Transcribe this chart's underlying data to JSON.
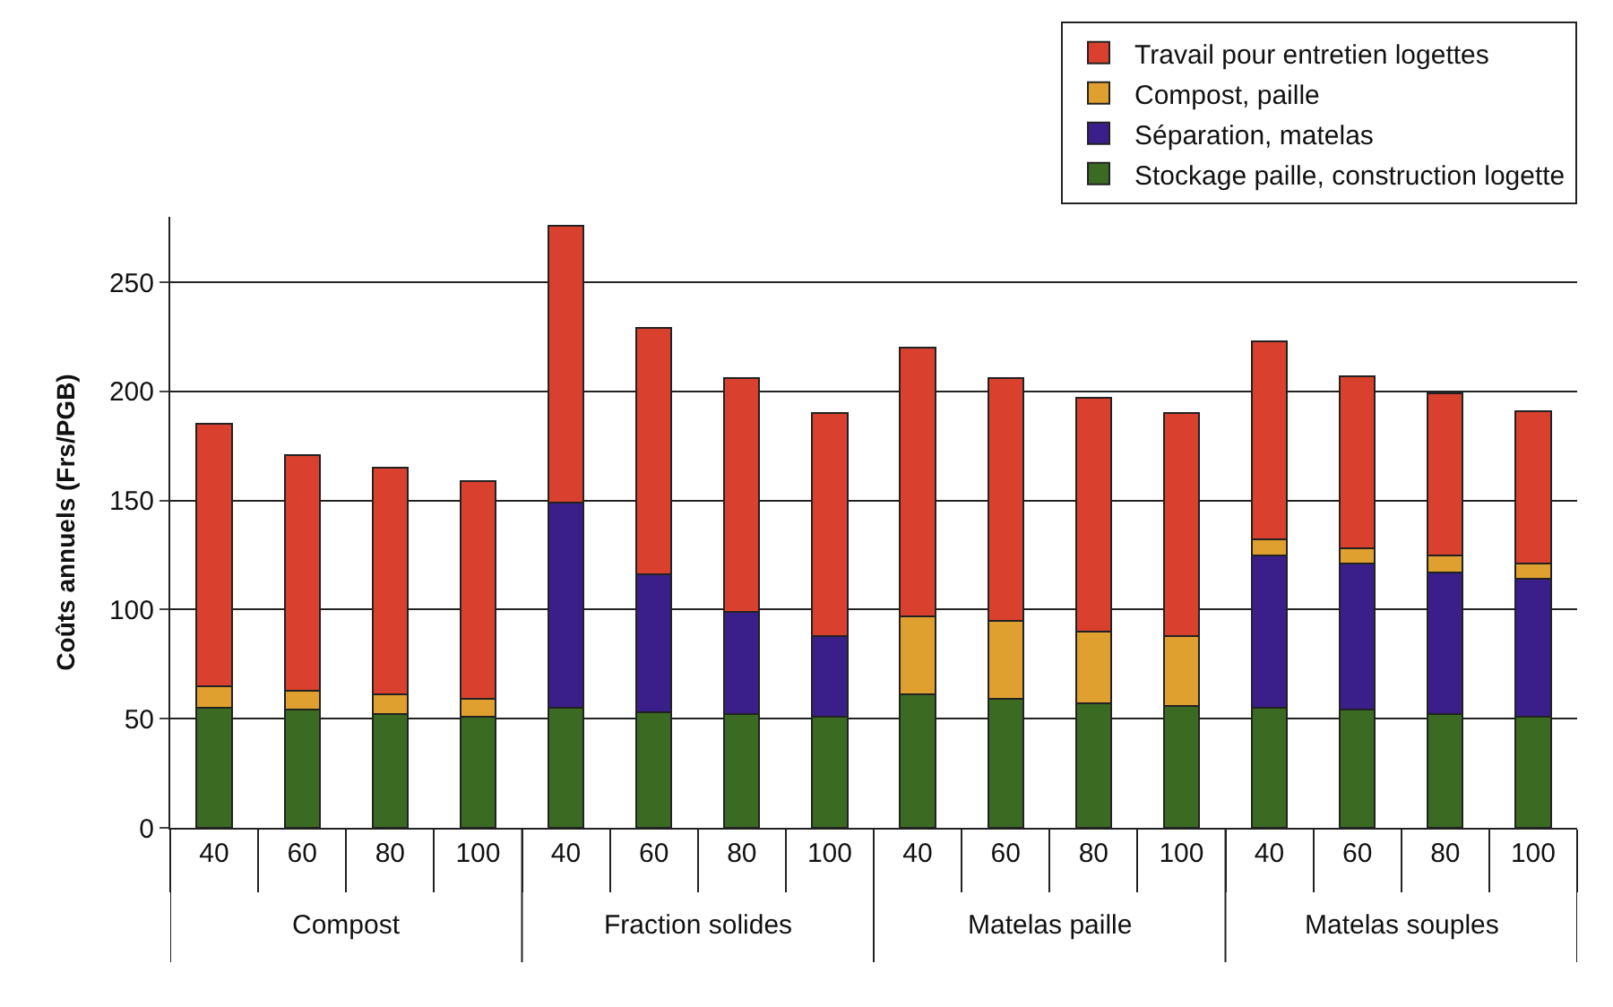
{
  "chart_data": {
    "type": "bar",
    "stacked": true,
    "ylabel": "Coûts annuels (Frs/PGB)",
    "categories": [
      "40",
      "60",
      "80",
      "100",
      "40",
      "60",
      "80",
      "100",
      "40",
      "60",
      "80",
      "100",
      "40",
      "60",
      "80",
      "100"
    ],
    "annotations": [
      "Compost",
      "Fraction solides",
      "Matelas paille",
      "Matelas souples"
    ],
    "series": [
      {
        "name": "Stockage paille, construction logette",
        "color": "#3b6b22",
        "values": [
          55,
          54,
          52,
          51,
          55,
          53,
          52,
          51,
          61,
          59,
          57,
          56,
          55,
          54,
          52,
          51
        ]
      },
      {
        "name": "Séparation, matelas",
        "color": "#3a1f8a",
        "values": [
          null,
          null,
          null,
          null,
          94,
          63,
          47,
          37,
          null,
          null,
          null,
          null,
          70,
          67,
          65,
          63
        ]
      },
      {
        "name": "Compost, paille",
        "color": "#e0a030",
        "values": [
          10,
          9,
          9,
          8,
          null,
          null,
          null,
          null,
          36,
          36,
          33,
          32,
          7,
          7,
          8,
          7
        ]
      },
      {
        "name": "Travail pour entretien logettes",
        "color": "#d9412e",
        "values": [
          120,
          108,
          104,
          100,
          127,
          113,
          107,
          102,
          123,
          111,
          107,
          102,
          91,
          79,
          74,
          70
        ]
      }
    ],
    "ylim": [
      0,
      280
    ],
    "yticks": [
      0,
      50,
      100,
      150,
      200,
      250
    ],
    "grid": "y",
    "legend": "top right"
  }
}
